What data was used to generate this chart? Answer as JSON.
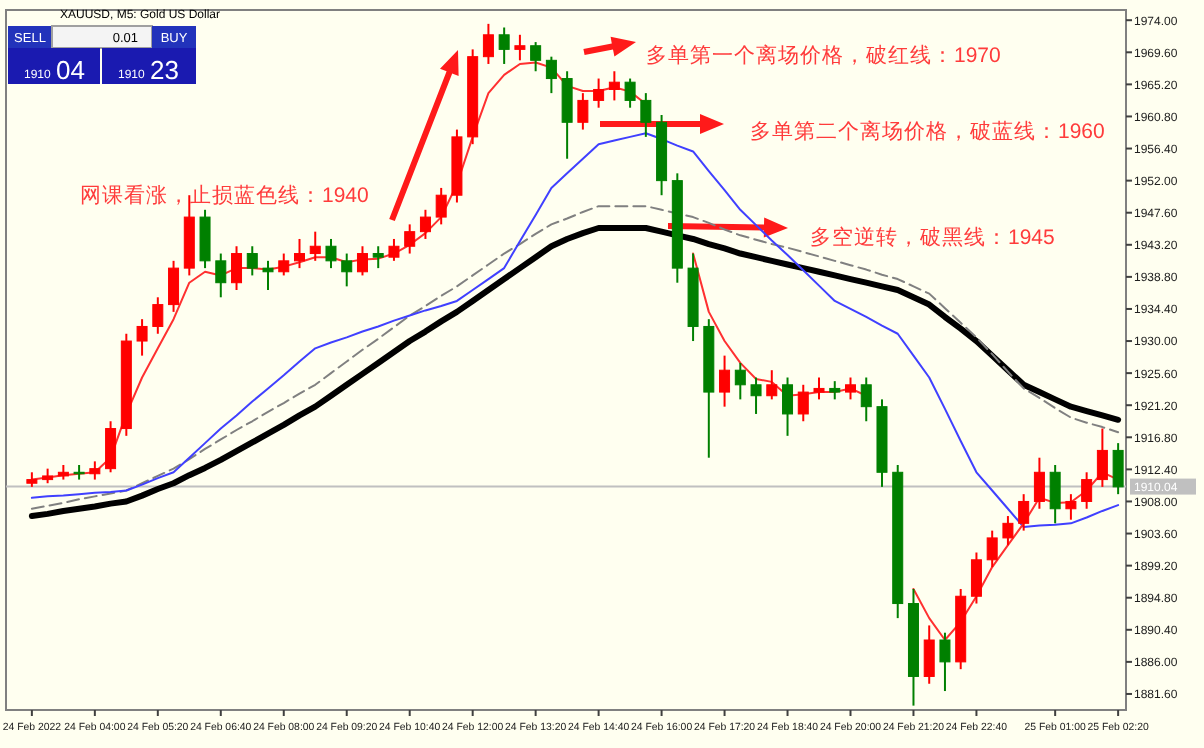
{
  "chart_data": {
    "type": "candlestick",
    "title": "XAUUSD, M5: Gold US Dollar",
    "categories": [
      "24 Feb 2022",
      null,
      null,
      null,
      "24 Feb 04:00",
      null,
      null,
      null,
      "24 Feb 05:20",
      null,
      null,
      null,
      "24 Feb 06:40",
      null,
      null,
      null,
      "24 Feb 08:00",
      null,
      null,
      null,
      "24 Feb 09:20",
      null,
      null,
      null,
      "24 Feb 10:40",
      null,
      null,
      null,
      "24 Feb 12:00",
      null,
      null,
      null,
      "24 Feb 13:20",
      null,
      null,
      null,
      "24 Feb 14:40",
      null,
      null,
      null,
      "24 Feb 16:00",
      null,
      null,
      null,
      "24 Feb 17:20",
      null,
      null,
      null,
      "24 Feb 18:40",
      null,
      null,
      null,
      "24 Feb 20:00",
      null,
      null,
      null,
      "24 Feb 21:20",
      null,
      null,
      null,
      "24 Feb 22:40",
      null,
      null,
      null,
      null,
      "25 Feb 01:00",
      null,
      null,
      null,
      "25 Feb 02:20"
    ],
    "ohlc": [
      [
        1910.5,
        1912,
        1910,
        1911
      ],
      [
        1911,
        1912.5,
        1910.5,
        1911.5
      ],
      [
        1911.5,
        1913,
        1911,
        1912
      ],
      [
        1912,
        1913,
        1911,
        1911.8
      ],
      [
        1911.8,
        1913.5,
        1911,
        1912.5
      ],
      [
        1912.5,
        1919,
        1912,
        1918
      ],
      [
        1918,
        1931,
        1917,
        1930
      ],
      [
        1930,
        1933,
        1928,
        1932
      ],
      [
        1932,
        1936,
        1931,
        1935
      ],
      [
        1935,
        1941,
        1934,
        1940
      ],
      [
        1940,
        1950,
        1939,
        1947
      ],
      [
        1947,
        1948,
        1940,
        1941
      ],
      [
        1941,
        1942,
        1936,
        1938
      ],
      [
        1938,
        1943,
        1937,
        1942
      ],
      [
        1942,
        1943,
        1939,
        1940
      ],
      [
        1940,
        1941,
        1937,
        1939.5
      ],
      [
        1939.5,
        1942,
        1939,
        1941
      ],
      [
        1941,
        1944,
        1940,
        1942
      ],
      [
        1942,
        1945,
        1941,
        1943
      ],
      [
        1943,
        1944,
        1940,
        1941
      ],
      [
        1941,
        1942,
        1937.5,
        1939.5
      ],
      [
        1939.5,
        1943,
        1939,
        1942
      ],
      [
        1942,
        1943,
        1940,
        1941.5
      ],
      [
        1941.5,
        1944,
        1941,
        1943
      ],
      [
        1943,
        1946,
        1942,
        1945
      ],
      [
        1945,
        1948,
        1944,
        1947
      ],
      [
        1947,
        1951,
        1946,
        1950
      ],
      [
        1950,
        1959,
        1949,
        1958
      ],
      [
        1958,
        1970,
        1957,
        1969
      ],
      [
        1969,
        1973.5,
        1968,
        1972
      ],
      [
        1972,
        1973,
        1968,
        1970
      ],
      [
        1970,
        1972,
        1968.5,
        1970.5
      ],
      [
        1970.5,
        1971,
        1967,
        1968.5
      ],
      [
        1968.5,
        1969,
        1964,
        1966
      ],
      [
        1966,
        1967,
        1955,
        1960
      ],
      [
        1960,
        1964,
        1959,
        1963
      ],
      [
        1963,
        1966,
        1962,
        1964.5
      ],
      [
        1964.5,
        1967,
        1963,
        1965.5
      ],
      [
        1965.5,
        1966,
        1962,
        1963
      ],
      [
        1963,
        1964,
        1958,
        1960
      ],
      [
        1960,
        1961,
        1950,
        1952
      ],
      [
        1952,
        1953,
        1938,
        1940
      ],
      [
        1940,
        1942,
        1930,
        1932
      ],
      [
        1932,
        1933,
        1914,
        1923
      ],
      [
        1923,
        1928,
        1921,
        1926
      ],
      [
        1926,
        1927,
        1922,
        1924
      ],
      [
        1924,
        1925,
        1920,
        1922.5
      ],
      [
        1922.5,
        1926,
        1922,
        1924
      ],
      [
        1924,
        1925,
        1917,
        1920
      ],
      [
        1920,
        1924,
        1919,
        1923
      ],
      [
        1923,
        1925,
        1922,
        1923.5
      ],
      [
        1923.5,
        1924.5,
        1922,
        1923
      ],
      [
        1923,
        1925,
        1922,
        1924
      ],
      [
        1924,
        1925,
        1919,
        1921
      ],
      [
        1921,
        1922,
        1910,
        1912
      ],
      [
        1912,
        1913,
        1892,
        1894
      ],
      [
        1894,
        1896,
        1880,
        1884
      ],
      [
        1884,
        1891,
        1883,
        1889
      ],
      [
        1889,
        1890,
        1882,
        1886
      ],
      [
        1886,
        1896,
        1885,
        1895
      ],
      [
        1895,
        1901,
        1894,
        1900
      ],
      [
        1900,
        1904,
        1899,
        1903
      ],
      [
        1903,
        1906,
        1902,
        1905
      ],
      [
        1905,
        1909,
        1904,
        1908
      ],
      [
        1908,
        1914,
        1907,
        1912
      ],
      [
        1912,
        1913,
        1905,
        1907
      ],
      [
        1907,
        1909,
        1905.5,
        1908
      ],
      [
        1908,
        1912,
        1907,
        1911
      ],
      [
        1911,
        1918,
        1910,
        1915
      ],
      [
        1915,
        1916,
        1909,
        1910
      ]
    ],
    "colors": [
      "#ff0000",
      "#ff0000",
      "#ff0000",
      "#008000",
      "#ff0000",
      "#ff0000",
      "#ff0000",
      "#ff0000",
      "#ff0000",
      "#ff0000",
      "#ff0000",
      "#008000",
      "#008000",
      "#ff0000",
      "#008000",
      "#008000",
      "#ff0000",
      "#ff0000",
      "#ff0000",
      "#008000",
      "#008000",
      "#ff0000",
      "#008000",
      "#ff0000",
      "#ff0000",
      "#ff0000",
      "#ff0000",
      "#ff0000",
      "#ff0000",
      "#ff0000",
      "#008000",
      "#ff0000",
      "#008000",
      "#008000",
      "#008000",
      "#ff0000",
      "#ff0000",
      "#ff0000",
      "#008000",
      "#008000",
      "#008000",
      "#008000",
      "#008000",
      "#008000",
      "#ff0000",
      "#008000",
      "#008000",
      "#ff0000",
      "#008000",
      "#ff0000",
      "#ff0000",
      "#008000",
      "#ff0000",
      "#008000",
      "#008000",
      "#008000",
      "#008000",
      "#ff0000",
      "#008000",
      "#ff0000",
      "#ff0000",
      "#ff0000",
      "#ff0000",
      "#ff0000",
      "#ff0000",
      "#008000",
      "#ff0000",
      "#ff0000",
      "#ff0000",
      "#008000"
    ],
    "series": [
      {
        "type": "line",
        "color": "#000000",
        "values": [
          1906,
          1906.3,
          1906.7,
          1907,
          1907.3,
          1907.7,
          1908,
          1908.8,
          1909.7,
          1910.5,
          1911.6,
          1912.6,
          1913.7,
          1914.9,
          1916.1,
          1917.3,
          1918.5,
          1919.8,
          1921,
          1922.5,
          1924,
          1925.5,
          1927,
          1928.5,
          1930,
          1931.3,
          1932.7,
          1934,
          1935.5,
          1937,
          1938.5,
          1940,
          1941.5,
          1943,
          1944,
          1944.8,
          1945.5,
          1945.5,
          1945.5,
          1945.5,
          1945,
          1944.5,
          1944,
          1943.3,
          1942.7,
          1942,
          1941.5,
          1941,
          1940.5,
          1940,
          1939.5,
          1939,
          1938.5,
          1938,
          1937.5,
          1937,
          1936,
          1935,
          1933.3,
          1931.7,
          1930,
          1928,
          1926,
          1924,
          1923,
          1922,
          1921,
          1920.4,
          1919.8,
          1919.2
        ]
      },
      {
        "type": "line",
        "color": "#808080",
        "line_style": "dashed",
        "values": [
          1907,
          1907.4,
          1907.8,
          1908.3,
          1908.7,
          1909.1,
          1909.5,
          1910.5,
          1911.5,
          1912.5,
          1913.8,
          1915.2,
          1916.5,
          1917.8,
          1919,
          1920.3,
          1921.5,
          1922.8,
          1924,
          1925.6,
          1927.2,
          1928.8,
          1930.3,
          1931.9,
          1933.5,
          1934.8,
          1936.2,
          1937.5,
          1939,
          1940.5,
          1942,
          1943.3,
          1944.7,
          1946,
          1946.8,
          1947.7,
          1948.5,
          1948.5,
          1948.5,
          1948.5,
          1948,
          1947.5,
          1947,
          1946.2,
          1945.3,
          1944.5,
          1943.9,
          1943.3,
          1942.8,
          1942.2,
          1941.6,
          1941,
          1940.4,
          1939.8,
          1939.1,
          1938.5,
          1937.5,
          1936.5,
          1934.5,
          1932.5,
          1930.5,
          1928.2,
          1925.8,
          1923.5,
          1922.2,
          1920.8,
          1919.5,
          1918.8,
          1918.2,
          1917.5
        ]
      },
      {
        "type": "line",
        "color": "#4040ff",
        "values": [
          1908.5,
          1908.7,
          1908.8,
          1909,
          1909.2,
          1909.3,
          1909.5,
          1910.3,
          1911.2,
          1912,
          1914,
          1916,
          1918,
          1919.8,
          1921.7,
          1923.5,
          1925.3,
          1927.2,
          1929,
          1929.8,
          1930.5,
          1931.3,
          1932,
          1932.8,
          1933.5,
          1934.2,
          1934.8,
          1935.5,
          1937,
          1938.5,
          1940,
          1943.7,
          1947.3,
          1951,
          1953,
          1955,
          1957,
          1957.5,
          1958,
          1958.5,
          1957.7,
          1956.8,
          1956,
          1953.3,
          1950.7,
          1948,
          1945.9,
          1943.8,
          1941.8,
          1939.7,
          1937.6,
          1935.5,
          1934.4,
          1933.3,
          1932.1,
          1931,
          1928,
          1925,
          1920.7,
          1916.3,
          1912,
          1909.5,
          1907,
          1904.5,
          1904.7,
          1904.8,
          1905,
          1905.8,
          1906.7,
          1907.5
        ]
      },
      {
        "type": "line",
        "color": "#ff3030",
        "values": [
          1911,
          1911.3,
          1911.6,
          1911.8,
          1912,
          1914,
          1920,
          1925,
          1929,
          1933,
          1938,
          1939.5,
          1939,
          1940,
          1940,
          1939.8,
          1940.2,
          1940.8,
          1941.5,
          1941.5,
          1940.8,
          1941.2,
          1941.3,
          1942,
          1943.2,
          1944.8,
          1947,
          1951.5,
          1958,
          1964,
          1966.5,
          1968,
          1968.2,
          1967.5,
          1965,
          1964.3,
          1964.3,
          1964.8,
          1964.2,
          1962.5,
          null,
          null,
          1942,
          1934,
          1930,
          1927,
          1924.8,
          1924.4,
          1922.5,
          1922.7,
          1923,
          1923,
          1923.5,
          1922.5,
          null,
          null,
          1896,
          1892,
          1889,
          1891.5,
          1895,
          1899,
          1902,
          1905,
          1908.5,
          1907.8,
          1907.9,
          1909.5,
          1912,
          1911
        ]
      }
    ],
    "ylim": [
      1879.4,
      1975.4
    ],
    "yticks": [
      {
        "value": 1974,
        "label": "1974.00"
      },
      {
        "value": 1969.6,
        "label": "1969.60"
      },
      {
        "value": 1965.2,
        "label": "1965.20"
      },
      {
        "value": 1960.8,
        "label": "1960.80"
      },
      {
        "value": 1956.4,
        "label": "1956.40"
      },
      {
        "value": 1952,
        "label": "1952.00"
      },
      {
        "value": 1947.6,
        "label": "1947.60"
      },
      {
        "value": 1943.2,
        "label": "1943.20"
      },
      {
        "value": 1938.8,
        "label": "1938.80"
      },
      {
        "value": 1934.4,
        "label": "1934.40"
      },
      {
        "value": 1930,
        "label": "1930.00"
      },
      {
        "value": 1925.6,
        "label": "1925.60"
      },
      {
        "value": 1921.2,
        "label": "1921.20"
      },
      {
        "value": 1916.8,
        "label": "1916.80"
      },
      {
        "value": 1912.4,
        "label": "1912.40"
      },
      {
        "value": 1908,
        "label": "1908.00"
      },
      {
        "value": 1903.6,
        "label": "1903.60"
      },
      {
        "value": 1899.2,
        "label": "1899.20"
      },
      {
        "value": 1894.8,
        "label": "1894.80"
      },
      {
        "value": 1890.4,
        "label": "1890.40"
      },
      {
        "value": 1886,
        "label": "1886.00"
      },
      {
        "value": 1881.6,
        "label": "1881.60"
      }
    ],
    "ref_lines": [
      {
        "axis": "y",
        "value": 1910.04,
        "label": "1910.04",
        "color": "#c0c0c0"
      }
    ],
    "annotations": [
      "网课看涨，止损蓝色线：1940",
      "多单第一个离场价格，破红线：1970",
      "多单第二个离场价格，破蓝线：1960",
      "多空逆转，破黑线：1945",
      "SELL",
      "0.01",
      "BUY",
      "1910",
      "04",
      "1910",
      "23"
    ]
  }
}
